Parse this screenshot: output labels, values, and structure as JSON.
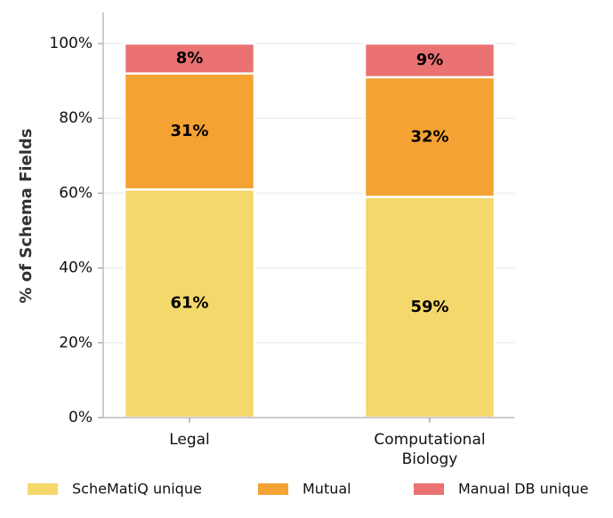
{
  "chart_data": {
    "type": "bar",
    "stacked": true,
    "categories": [
      "Legal",
      "Computational\nBiology"
    ],
    "series": [
      {
        "name": "ScheMatiQ unique",
        "values": [
          61,
          59
        ],
        "labels": [
          "61%",
          "59%"
        ],
        "color": "#F4D86B"
      },
      {
        "name": "Mutual",
        "values": [
          31,
          32
        ],
        "labels": [
          "31%",
          "32%"
        ],
        "color": "#F4A233"
      },
      {
        "name": "Manual DB unique",
        "values": [
          8,
          9
        ],
        "labels": [
          "8%",
          "9%"
        ],
        "color": "#EA7272"
      }
    ],
    "ylabel": "% of Schema Fields",
    "xlabel": "",
    "ylim": [
      0,
      100
    ],
    "yticks": [
      0,
      20,
      40,
      60,
      80,
      100
    ],
    "ytick_labels": [
      "0%",
      "20%",
      "40%",
      "60%",
      "80%",
      "100%"
    ],
    "grid": "horizontal",
    "legend_position": "bottom"
  }
}
